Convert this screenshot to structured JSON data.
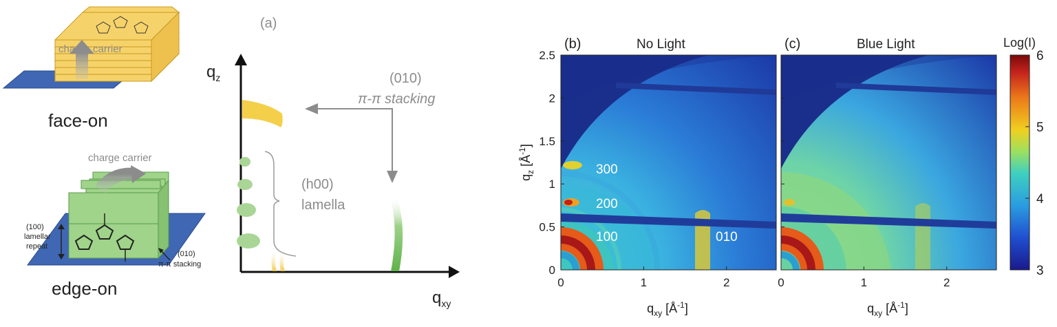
{
  "schematic": {
    "face_on": {
      "carrier_label": "charge carrier",
      "caption": "face-on"
    },
    "edge_on": {
      "carrier_label": "charge carrier",
      "caption": "edge-on",
      "lamellar_label_1": "(100)",
      "lamellar_label_2": "lamellar",
      "lamellar_label_3": "repeat",
      "pi_label_1": "(010)",
      "pi_label_2": "π-π stacking"
    }
  },
  "panel_a": {
    "label": "(a)",
    "y_axis_main": "q",
    "y_axis_sub": "z",
    "x_axis_main": "q",
    "x_axis_sub": "xy",
    "pi_annotation_1": "(010)",
    "pi_annotation_2": "π-π stacking",
    "lamella_annotation_1": "(h00)",
    "lamella_annotation_2": "lamella"
  },
  "panel_b": {
    "label": "(b)",
    "title": "No Light",
    "peak_labels": [
      "300",
      "200",
      "100",
      "010"
    ]
  },
  "panel_c": {
    "label": "(c)",
    "title": "Blue Light"
  },
  "axes": {
    "ylabel_main": "q",
    "ylabel_sub": "z",
    "ylabel_unit": " [Å",
    "ylabel_exp": "-1",
    "ylabel_close": "]",
    "xlabel_main": "q",
    "xlabel_sub": "xy",
    "xlabel_unit": " [Å",
    "xlabel_exp": "-1",
    "xlabel_close": "]",
    "y_ticks": [
      "0",
      "0.5",
      "1",
      "1.5",
      "2",
      "2.5"
    ],
    "x_ticks": [
      "0",
      "1",
      "2"
    ]
  },
  "colorbar": {
    "title": "Log(I)",
    "ticks": [
      "3",
      "4",
      "5",
      "6"
    ],
    "colors": [
      "#1a1a8c",
      "#1f5fd6",
      "#27b4e6",
      "#56d6a0",
      "#c7e34a",
      "#f0c020",
      "#e8701a",
      "#c4231c",
      "#7a0a0a"
    ]
  }
}
